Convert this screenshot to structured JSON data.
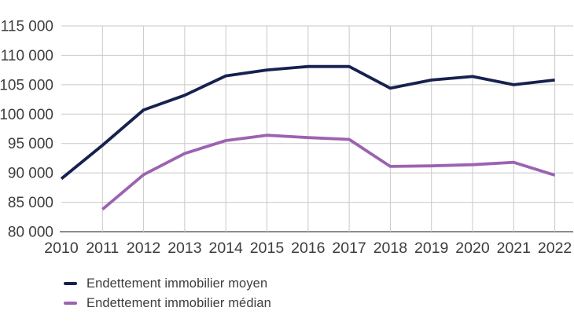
{
  "chart_data": {
    "type": "line",
    "title": "",
    "x_labels": [
      "2010",
      "2011",
      "2012",
      "2013",
      "2014",
      "2015",
      "2016",
      "2017",
      "2018",
      "2019",
      "2020",
      "2021",
      "2022"
    ],
    "series": [
      {
        "name": "Endettement immobilier moyen",
        "color": "#16214f",
        "values": [
          89000,
          94700,
          100700,
          103200,
          106500,
          107500,
          108100,
          108100,
          104400,
          105800,
          106400,
          105000,
          105800
        ]
      },
      {
        "name": "Endettement immobilier médian",
        "color": "#9b63b1",
        "values": [
          null,
          83800,
          89700,
          93300,
          95500,
          96400,
          96000,
          95700,
          91100,
          91200,
          91400,
          91800,
          89600
        ]
      }
    ],
    "ylim": [
      80000,
      115000
    ],
    "ytick_values": [
      115000,
      110000,
      105000,
      100000,
      95000,
      90000,
      85000,
      80000
    ],
    "ytick_labels": [
      "115 000",
      "110 000",
      "105 000",
      "100 000",
      "95 000",
      "90 000",
      "85 000",
      "80 000"
    ],
    "grid": true,
    "legend_position": "bottom-left",
    "gridline_color": "#c9c9c9",
    "axis_color": "#8c8c8c",
    "tick_text_color": "#3d3d3d"
  }
}
